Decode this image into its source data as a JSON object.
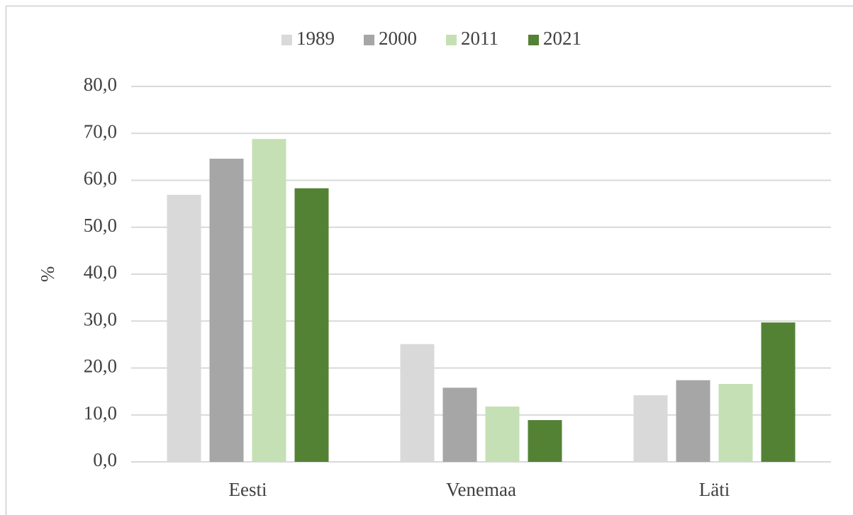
{
  "chart_data": {
    "type": "bar",
    "y_label": "%",
    "categories": [
      "Eesti",
      "Venemaa",
      "Läti"
    ],
    "series": [
      {
        "name": "1989",
        "color": "#d9d9d9",
        "values": [
          56.9,
          25.1,
          14.2
        ]
      },
      {
        "name": "2000",
        "color": "#a6a6a6",
        "values": [
          64.6,
          15.8,
          17.4
        ]
      },
      {
        "name": "2011",
        "color": "#c5e0b4",
        "values": [
          68.8,
          11.8,
          16.6
        ]
      },
      {
        "name": "2021",
        "color": "#548235",
        "values": [
          58.3,
          8.9,
          29.7
        ]
      }
    ],
    "ylim": [
      0,
      80
    ],
    "yticks": [
      {
        "value": 0,
        "label": "0,0"
      },
      {
        "value": 10,
        "label": "10,0"
      },
      {
        "value": 20,
        "label": "20,0"
      },
      {
        "value": 30,
        "label": "30,0"
      },
      {
        "value": 40,
        "label": "40,0"
      },
      {
        "value": 50,
        "label": "50,0"
      },
      {
        "value": 60,
        "label": "60,0"
      },
      {
        "value": 70,
        "label": "70,0"
      },
      {
        "value": 80,
        "label": "80,0"
      }
    ],
    "grid": true,
    "legend": "top"
  }
}
